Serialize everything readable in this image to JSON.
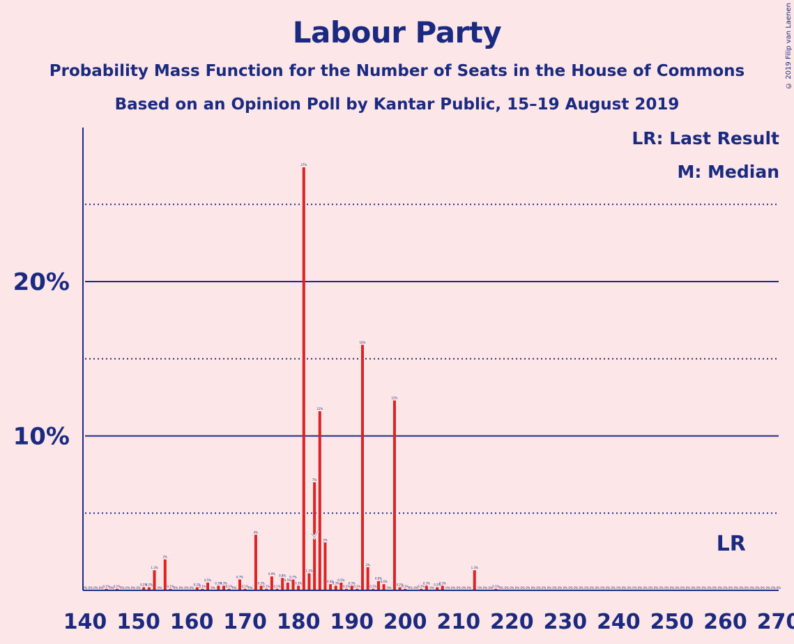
{
  "title": "Labour Party",
  "subtitle": "Probability Mass Function for the Number of Seats in the House of Commons",
  "subtitle2": "Based on an Opinion Poll by Kantar Public, 15–19 August 2019",
  "copyright": "© 2019 Filip van Laenen",
  "legend": {
    "lr": "LR: Last Result",
    "m": "M: Median"
  },
  "colors": {
    "bar": "#dd2222",
    "axis": "#1a2a80",
    "background": "#fde6e8"
  },
  "chart_data": {
    "type": "bar",
    "title": "Labour Party",
    "xlabel": "",
    "ylabel": "",
    "xlim": [
      140,
      270
    ],
    "ylim": [
      0,
      30
    ],
    "xticks": [
      140,
      150,
      160,
      170,
      180,
      190,
      200,
      210,
      220,
      230,
      240,
      250,
      260,
      270
    ],
    "xtick_labels": [
      "140",
      "150",
      "160",
      "170",
      "180",
      "190",
      "200",
      "210",
      "220",
      "230",
      "240",
      "250",
      "260",
      "270"
    ],
    "yticks": [
      10,
      20
    ],
    "ytick_labels": [
      "10%",
      "20%"
    ],
    "dotted_gridlines": [
      5,
      15,
      25
    ],
    "median": 183,
    "last_result": 262,
    "last_result_label": "LR",
    "x": [
      140,
      141,
      142,
      143,
      144,
      145,
      146,
      147,
      148,
      149,
      150,
      151,
      152,
      153,
      154,
      155,
      156,
      157,
      158,
      159,
      160,
      161,
      162,
      163,
      164,
      165,
      166,
      167,
      168,
      169,
      170,
      171,
      172,
      173,
      174,
      175,
      176,
      177,
      178,
      179,
      180,
      181,
      182,
      183,
      184,
      185,
      186,
      187,
      188,
      189,
      190,
      191,
      192,
      193,
      194,
      195,
      196,
      197,
      198,
      199,
      200,
      201,
      202,
      203,
      204,
      205,
      206,
      207,
      208,
      209,
      210,
      211,
      212,
      213,
      214,
      215,
      216,
      217,
      218,
      219,
      220,
      221,
      222,
      223,
      224,
      225,
      226,
      227,
      228,
      229,
      230,
      231,
      232,
      233,
      234,
      235,
      236,
      237,
      238,
      239,
      240,
      241,
      242,
      243,
      244,
      245,
      246,
      247,
      248,
      249,
      250,
      251,
      252,
      253,
      254,
      255,
      256,
      257,
      258,
      259,
      260,
      261,
      262,
      263,
      264,
      265,
      266,
      267,
      268,
      269,
      270
    ],
    "values": [
      0,
      0,
      0,
      0,
      0.1,
      0,
      0.1,
      0,
      0,
      0,
      0,
      0.2,
      0.2,
      1.3,
      0,
      2,
      0.1,
      0,
      0,
      0,
      0,
      0.2,
      0.1,
      0.5,
      0,
      0.3,
      0.3,
      0.1,
      0,
      0.7,
      0.1,
      0,
      3.6,
      0.3,
      0.1,
      0.9,
      0.1,
      0.8,
      0.5,
      0.7,
      0.3,
      27.4,
      1.1,
      7,
      11.6,
      3.1,
      0.4,
      0.3,
      0.5,
      0.1,
      0.3,
      0.1,
      15.9,
      1.5,
      0.1,
      0.6,
      0.4,
      0,
      12.3,
      0.2,
      0.1,
      0,
      0,
      0.1,
      0.3,
      0,
      0.2,
      0.3,
      0,
      0,
      0,
      0,
      0,
      1.3,
      0,
      0,
      0,
      0.1,
      0,
      0,
      0,
      0,
      0,
      0,
      0,
      0,
      0,
      0,
      0,
      0,
      0,
      0,
      0,
      0,
      0,
      0,
      0,
      0,
      0,
      0,
      0,
      0,
      0,
      0,
      0,
      0,
      0,
      0,
      0,
      0,
      0,
      0,
      0,
      0,
      0,
      0,
      0,
      0,
      0,
      0,
      0,
      0,
      0,
      0,
      0,
      0,
      0,
      0,
      0,
      0,
      0
    ],
    "labels": [
      "0%",
      "0%",
      "0%",
      "0%",
      "0.1%",
      "0%",
      "0.1%",
      "0%",
      "0%",
      "0%",
      "0%",
      "0.2%",
      "0.2%",
      "1.3%",
      "0%",
      "2%",
      "0.1%",
      "0%",
      "0%",
      "0%",
      "0%",
      "0.2%",
      "0.1%",
      "0.5%",
      "0%",
      "0.3%",
      "0.3%",
      "0.1%",
      "0%",
      "0.7%",
      "0.1%",
      "0%",
      "4%",
      "0.3%",
      "0.1%",
      "0.9%",
      "0.1%",
      "0.8%",
      "0.5%",
      "0.7%",
      "0.3%",
      "27%",
      "1.1%",
      "7%",
      "12%",
      "3%",
      "0.4%",
      "0.3%",
      "0.5%",
      "0.1%",
      "0.3%",
      "0.1%",
      "16%",
      "2%",
      "0.1%",
      "0.6%",
      "0.4%",
      "0%",
      "12%",
      "0.2%",
      "0.1%",
      "0%",
      "0%",
      "0.1%",
      "0.3%",
      "0%",
      "0.2%",
      "0.3%",
      "0%",
      "0%",
      "0%",
      "0%",
      "0%",
      "1.3%",
      "0%",
      "0%",
      "0%",
      "0.1%",
      "0%",
      "0%",
      "0%",
      "0%",
      "0%",
      "0%",
      "0%",
      "0%",
      "0%",
      "0%",
      "0%",
      "0%",
      "0%",
      "0%",
      "0%",
      "0%",
      "0%",
      "0%",
      "0%",
      "0%",
      "0%",
      "0%",
      "0%",
      "0%",
      "0%",
      "0%",
      "0%",
      "0%",
      "0%",
      "0%",
      "0%",
      "0%",
      "0%",
      "0%",
      "0%",
      "0%",
      "0%",
      "0%",
      "0%",
      "0%",
      "0%",
      "0%",
      "0%",
      "0%",
      "0%",
      "0%",
      "0%",
      "0%",
      "0%",
      "0%",
      "0%",
      "0%",
      "0%"
    ]
  }
}
